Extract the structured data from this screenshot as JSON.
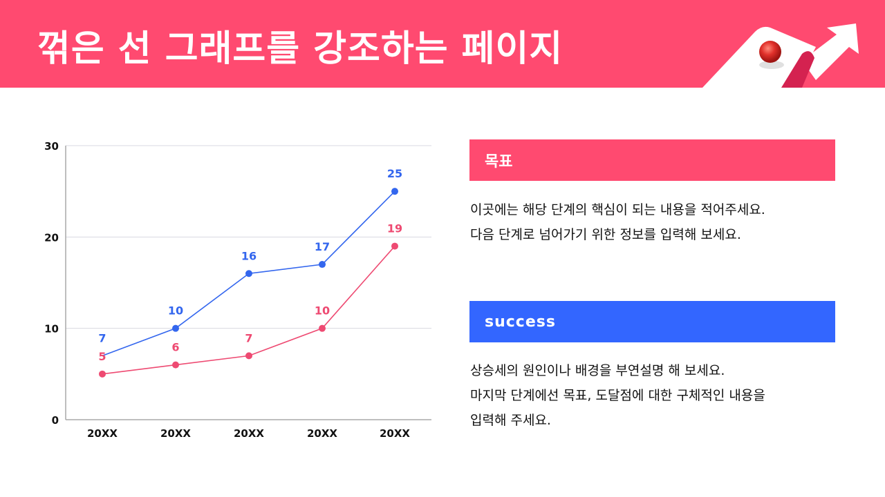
{
  "header": {
    "title": "꺾은 선 그래프를 강조하는 페이지",
    "background_color": "#ff4a70",
    "decoration_icon": "rising-arrow-ball-illustration"
  },
  "chart_data": {
    "type": "line",
    "title": "",
    "xlabel": "",
    "ylabel": "",
    "categories": [
      "20XX",
      "20XX",
      "20XX",
      "20XX",
      "20XX"
    ],
    "series": [
      {
        "name": "blue",
        "color": "#3366ee",
        "values": [
          7,
          10,
          16,
          17,
          25
        ],
        "labels": [
          "7",
          "10",
          "16",
          "17",
          "25"
        ]
      },
      {
        "name": "pink",
        "color": "#ee4a72",
        "values": [
          5,
          6,
          7,
          10,
          19
        ],
        "labels": [
          "5",
          "6",
          "7",
          "10",
          "19"
        ]
      }
    ],
    "yticks": [
      "0",
      "10",
      "20",
      "30"
    ],
    "ylim": [
      0,
      30
    ],
    "grid": true,
    "legend": "none"
  },
  "sections": {
    "goal": {
      "title": "목표",
      "color": "#ff4a70",
      "lines": [
        "이곳에는 해당 단계의 핵심이 되는 내용을 적어주세요.",
        "다음 단계로 넘어가기 위한 정보를 입력해 보세요."
      ]
    },
    "success": {
      "title": "success",
      "color": "#3366ff",
      "lines": [
        "상승세의 원인이나 배경을 부연설명 해 보세요.",
        "마지막 단계에선 목표, 도달점에 대한 구체적인 내용을",
        "입력해 주세요."
      ]
    }
  }
}
